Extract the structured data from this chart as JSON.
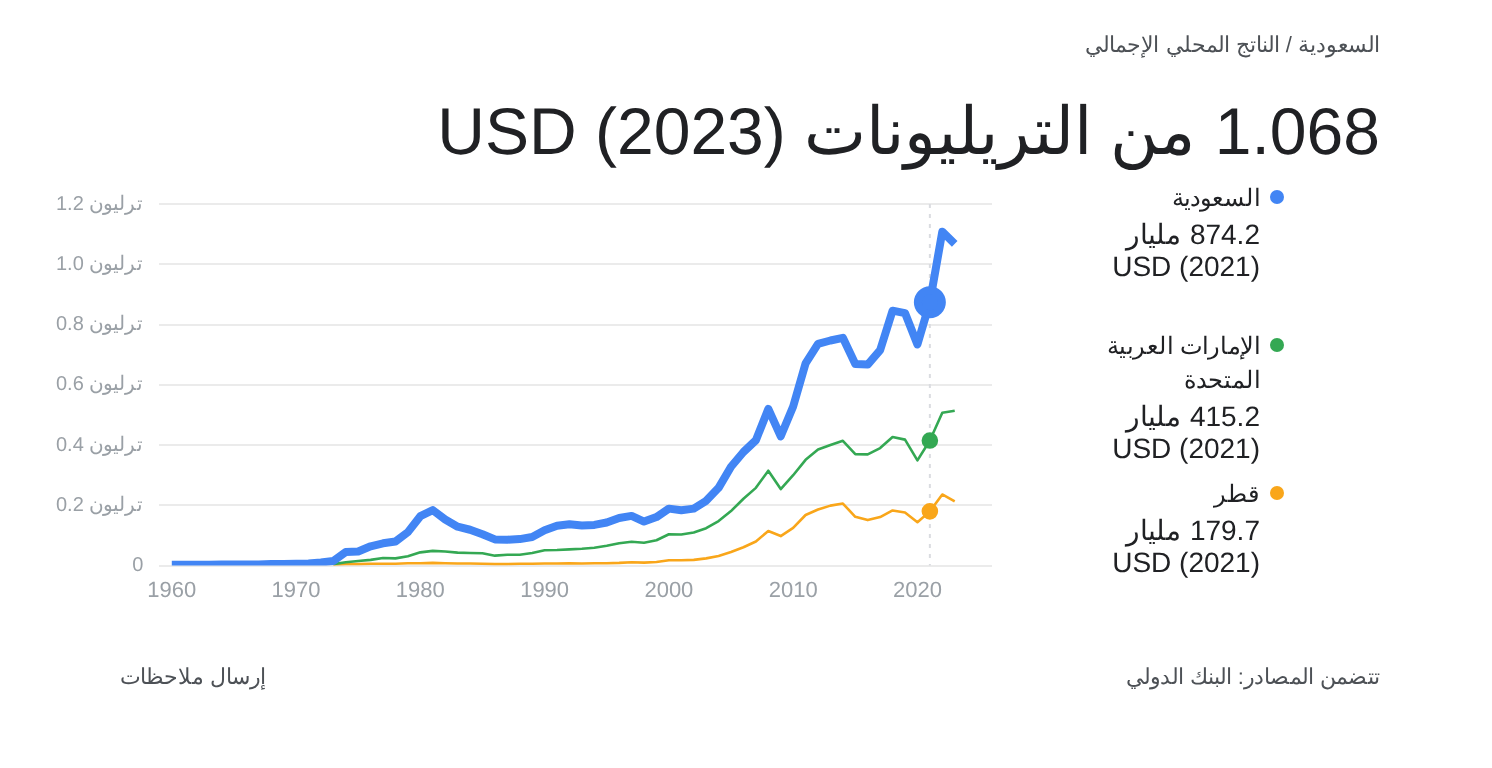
{
  "chart_data": {
    "type": "line",
    "title": "1.068 من التريليونات (2023) USD",
    "subtitle": "السعودية / الناتج المحلي الإجمالي",
    "x": [
      1960,
      1961,
      1962,
      1963,
      1964,
      1965,
      1966,
      1967,
      1968,
      1969,
      1970,
      1971,
      1972,
      1973,
      1974,
      1975,
      1976,
      1977,
      1978,
      1979,
      1980,
      1981,
      1982,
      1983,
      1984,
      1985,
      1986,
      1987,
      1988,
      1989,
      1990,
      1991,
      1992,
      1993,
      1994,
      1995,
      1996,
      1997,
      1998,
      1999,
      2000,
      2001,
      2002,
      2003,
      2004,
      2005,
      2006,
      2007,
      2008,
      2009,
      2010,
      2011,
      2012,
      2013,
      2014,
      2015,
      2016,
      2017,
      2018,
      2019,
      2020,
      2021,
      2022,
      2023
    ],
    "series": [
      {
        "name": "السعودية",
        "color": "#4285f4",
        "values": [
          0.003,
          0.003,
          0.003,
          0.003,
          0.004,
          0.004,
          0.004,
          0.004,
          0.005,
          0.005,
          0.006,
          0.007,
          0.01,
          0.015,
          0.045,
          0.047,
          0.064,
          0.074,
          0.08,
          0.111,
          0.164,
          0.184,
          0.153,
          0.129,
          0.119,
          0.104,
          0.087,
          0.086,
          0.088,
          0.095,
          0.117,
          0.132,
          0.137,
          0.133,
          0.135,
          0.143,
          0.158,
          0.165,
          0.146,
          0.161,
          0.189,
          0.184,
          0.189,
          0.215,
          0.258,
          0.328,
          0.377,
          0.416,
          0.52,
          0.429,
          0.528,
          0.671,
          0.736,
          0.747,
          0.756,
          0.669,
          0.667,
          0.715,
          0.846,
          0.838,
          0.734,
          0.874,
          1.108,
          1.068
        ]
      },
      {
        "name": "الإمارات العربية المتحدة",
        "color": "#34a853",
        "values": [
          null,
          null,
          null,
          null,
          null,
          null,
          null,
          null,
          null,
          null,
          null,
          null,
          null,
          0.005,
          0.011,
          0.015,
          0.019,
          0.025,
          0.024,
          0.031,
          0.044,
          0.049,
          0.047,
          0.043,
          0.042,
          0.041,
          0.033,
          0.036,
          0.036,
          0.042,
          0.051,
          0.052,
          0.054,
          0.056,
          0.059,
          0.066,
          0.074,
          0.079,
          0.076,
          0.084,
          0.104,
          0.103,
          0.11,
          0.124,
          0.148,
          0.181,
          0.222,
          0.258,
          0.315,
          0.254,
          0.3,
          0.351,
          0.385,
          0.4,
          0.414,
          0.37,
          0.369,
          0.39,
          0.427,
          0.418,
          0.349,
          0.415,
          0.507,
          0.514
        ]
      },
      {
        "name": "قطر",
        "color": "#f9a61a",
        "values": [
          null,
          null,
          null,
          null,
          null,
          null,
          null,
          null,
          null,
          null,
          null,
          null,
          null,
          0.002,
          0.005,
          0.005,
          0.006,
          0.006,
          0.006,
          0.008,
          0.008,
          0.009,
          0.008,
          0.007,
          0.007,
          0.006,
          0.005,
          0.005,
          0.006,
          0.006,
          0.007,
          0.007,
          0.008,
          0.007,
          0.008,
          0.008,
          0.009,
          0.011,
          0.01,
          0.012,
          0.018,
          0.018,
          0.019,
          0.024,
          0.032,
          0.045,
          0.061,
          0.08,
          0.115,
          0.098,
          0.125,
          0.168,
          0.186,
          0.199,
          0.206,
          0.162,
          0.151,
          0.161,
          0.183,
          0.176,
          0.144,
          0.18,
          0.236,
          0.213
        ]
      }
    ],
    "xlim": [
      1959,
      2026
    ],
    "xticks": [
      1960,
      1970,
      1980,
      1990,
      2000,
      2010,
      2020
    ],
    "ylim": [
      0,
      1.2
    ],
    "yticks": [
      0,
      {
        "value": 0.2,
        "label": "0.2 ترليون"
      },
      {
        "value": 0.4,
        "label": "0.4 ترليون"
      },
      {
        "value": 0.6,
        "label": "0.6 ترليون"
      },
      {
        "value": 0.8,
        "label": "0.8 ترليون"
      },
      {
        "value": 1,
        "label": "1.0 ترليون"
      },
      {
        "value": 1.2,
        "label": "1.2 ترليون"
      }
    ],
    "grid": "y",
    "legend": "right",
    "marker": "none",
    "ref_lines": [
      {
        "axis": "x",
        "value": 2021,
        "color": "#dadce0",
        "line_style": "dotted"
      }
    ],
    "annotations": [
      "874.2 مليار USD (2021)",
      "415.2 مليار USD (2021)",
      "179.7 مليار USD (2021)",
      "تتضمن المصادر: البنك الدولي",
      "إرسال ملاحظات"
    ]
  }
}
